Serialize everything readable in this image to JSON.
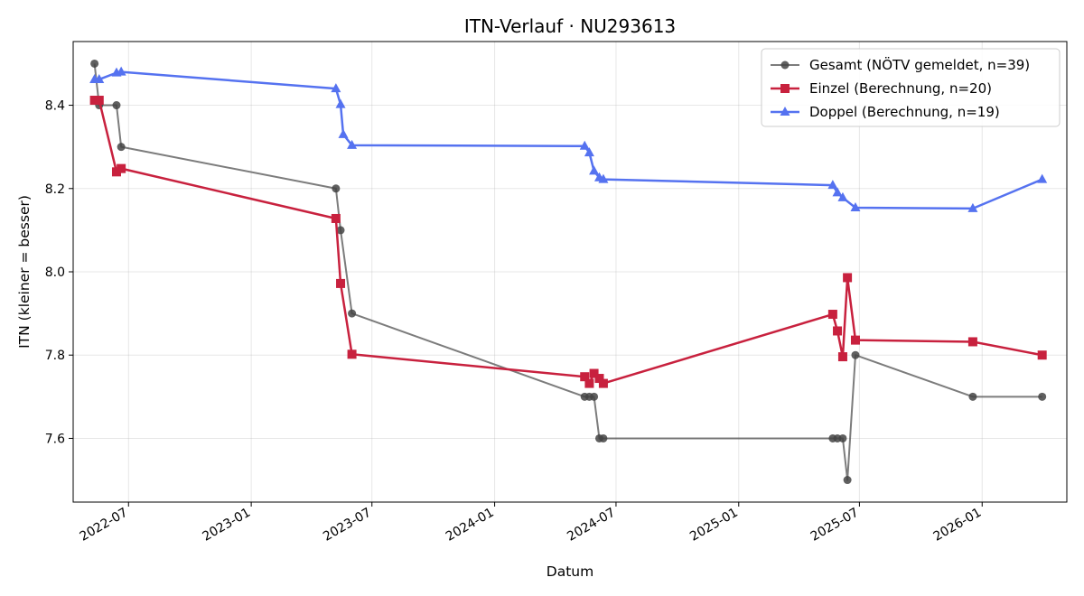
{
  "chart_data": {
    "type": "line",
    "title": "ITN-Verlauf · NU293613",
    "xlabel": "Datum",
    "ylabel": "ITN  (kleiner = besser)",
    "x_ticks": [
      "2022-07",
      "2023-01",
      "2023-07",
      "2024-01",
      "2024-07",
      "2025-01",
      "2025-07",
      "2026-01"
    ],
    "y_ticks": [
      "7.6",
      "7.8",
      "8.0",
      "8.2",
      "8.4"
    ],
    "xlim": [
      "2022-04-09",
      "2026-05-08"
    ],
    "ylim": [
      7.447,
      8.553
    ],
    "grid": true,
    "legend_position": "top-right",
    "series": [
      {
        "name": "Gesamt (NÖTV gemeldet, n=39)",
        "color": "#444444",
        "marker": "circle",
        "points": [
          [
            "2022-05-11",
            8.5
          ],
          [
            "2022-05-18",
            8.4
          ],
          [
            "2022-06-13",
            8.4
          ],
          [
            "2022-06-20",
            8.3
          ],
          [
            "2023-05-08",
            8.2
          ],
          [
            "2023-05-15",
            8.1
          ],
          [
            "2023-06-01",
            7.9
          ],
          [
            "2024-05-15",
            7.7
          ],
          [
            "2024-05-22",
            7.7
          ],
          [
            "2024-05-29",
            7.7
          ],
          [
            "2024-06-06",
            7.6
          ],
          [
            "2024-06-12",
            7.6
          ],
          [
            "2025-05-22",
            7.6
          ],
          [
            "2025-05-29",
            7.6
          ],
          [
            "2025-06-06",
            7.6
          ],
          [
            "2025-06-13",
            7.5
          ],
          [
            "2025-06-25",
            7.8
          ],
          [
            "2025-12-18",
            7.7
          ],
          [
            "2026-04-01",
            7.7
          ]
        ]
      },
      {
        "name": "Einzel (Berechnung, n=20)",
        "color": "#c8213e",
        "marker": "square",
        "points": [
          [
            "2022-05-11",
            8.412
          ],
          [
            "2022-05-18",
            8.412
          ],
          [
            "2022-06-13",
            8.24
          ],
          [
            "2022-06-20",
            8.248
          ],
          [
            "2023-05-08",
            8.128
          ],
          [
            "2023-05-15",
            7.972
          ],
          [
            "2023-06-01",
            7.802
          ],
          [
            "2024-05-15",
            7.748
          ],
          [
            "2024-05-22",
            7.732
          ],
          [
            "2024-05-29",
            7.756
          ],
          [
            "2024-06-06",
            7.744
          ],
          [
            "2024-06-12",
            7.732
          ],
          [
            "2025-05-22",
            7.898
          ],
          [
            "2025-05-29",
            7.858
          ],
          [
            "2025-06-06",
            7.796
          ],
          [
            "2025-06-13",
            7.986
          ],
          [
            "2025-06-25",
            7.836
          ],
          [
            "2025-12-18",
            7.832
          ],
          [
            "2026-04-01",
            7.8
          ]
        ]
      },
      {
        "name": "Doppel (Berechnung, n=19)",
        "color": "#5572f0",
        "marker": "triangle",
        "points": [
          [
            "2022-05-11",
            8.462
          ],
          [
            "2022-05-18",
            8.462
          ],
          [
            "2022-06-13",
            8.478
          ],
          [
            "2022-06-20",
            8.48
          ],
          [
            "2023-05-08",
            8.44
          ],
          [
            "2023-05-15",
            8.402
          ],
          [
            "2023-05-19",
            8.33
          ],
          [
            "2023-06-01",
            8.304
          ],
          [
            "2024-05-15",
            8.302
          ],
          [
            "2024-05-22",
            8.286
          ],
          [
            "2024-05-29",
            8.242
          ],
          [
            "2024-06-06",
            8.226
          ],
          [
            "2024-06-12",
            8.222
          ],
          [
            "2025-05-22",
            8.208
          ],
          [
            "2025-05-29",
            8.19
          ],
          [
            "2025-06-06",
            8.178
          ],
          [
            "2025-06-25",
            8.154
          ],
          [
            "2025-12-18",
            8.152
          ],
          [
            "2026-04-01",
            8.222
          ]
        ]
      }
    ]
  }
}
